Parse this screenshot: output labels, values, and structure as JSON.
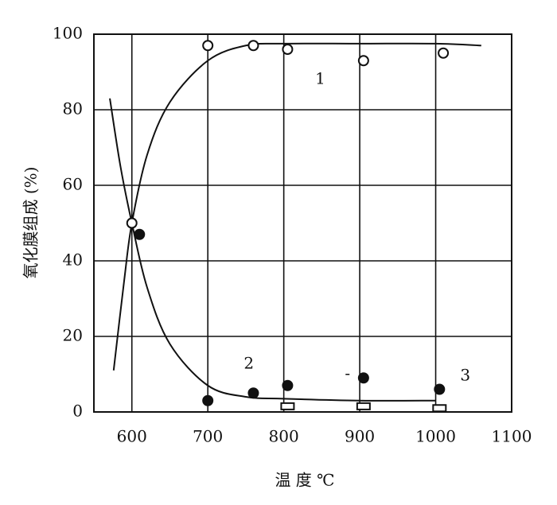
{
  "chart_data": {
    "type": "line",
    "x_label": "温 度 ℃",
    "y_label": "氧化膜组成 (%)",
    "xlim": [
      550,
      1100
    ],
    "ylim": [
      0,
      100
    ],
    "xticks": [
      600,
      700,
      800,
      900,
      1000,
      1100
    ],
    "yticks": [
      0,
      20,
      40,
      60,
      80,
      100
    ],
    "grid": true,
    "color": "#111111",
    "curves": [
      {
        "x": [
          576,
          590,
          600,
          620,
          650,
          700,
          750,
          800,
          900,
          1000,
          1060
        ],
        "values": [
          11,
          35,
          50,
          68,
          82,
          93,
          97,
          97.5,
          97.5,
          97.5,
          97
        ]
      },
      {
        "x": [
          571,
          585,
          600,
          620,
          650,
          700,
          750,
          800,
          900,
          1000
        ],
        "values": [
          83,
          65,
          50,
          33,
          18,
          7,
          4,
          3.5,
          3,
          3
        ]
      }
    ],
    "points": [
      {
        "marker": "open-circle",
        "x": [
          600,
          700,
          760,
          805,
          905,
          1010
        ],
        "values": [
          50,
          97,
          97,
          96,
          93,
          95
        ]
      },
      {
        "marker": "filled-circle",
        "x": [
          610,
          700,
          760,
          805,
          905,
          1005
        ],
        "values": [
          47,
          3,
          5,
          7,
          9,
          6
        ]
      },
      {
        "marker": "open-rect",
        "x": [
          805,
          905,
          1005
        ],
        "values": [
          1.5,
          1.5,
          1
        ]
      }
    ],
    "annotations": [
      {
        "text": "1",
        "x": 848,
        "y": 88
      },
      {
        "text": "2",
        "x": 754,
        "y": 12.6
      },
      {
        "text": "3",
        "x": 1039,
        "y": 9.5
      },
      {
        "text": "-",
        "x": 884,
        "y": 10
      }
    ]
  }
}
